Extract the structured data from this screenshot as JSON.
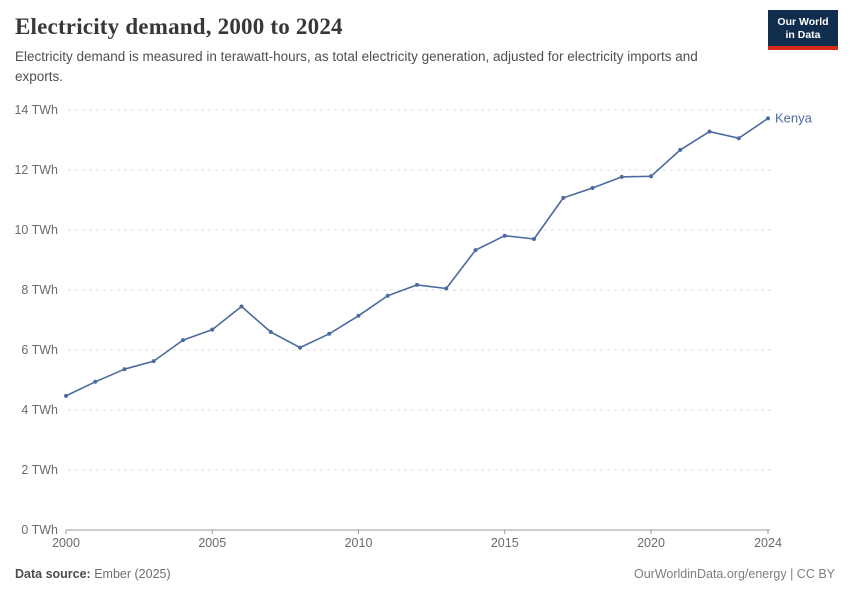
{
  "header": {
    "title": "Electricity demand, 2000 to 2024",
    "subtitle": "Electricity demand is measured in terawatt-hours, as total electricity generation, adjusted for electricity imports and exports.",
    "logo_line1": "Our World",
    "logo_line2": "in Data",
    "logo_bg_color": "#102d4e",
    "logo_stripe_color": "#d52b1e"
  },
  "chart_data": {
    "type": "line",
    "title": "Electricity demand, 2000 to 2024",
    "xlabel": "",
    "ylabel": "TWh",
    "xlim": [
      2000,
      2024
    ],
    "ylim": [
      0,
      14
    ],
    "grid": "horizontal-dashed",
    "legend_position": "end-of-line",
    "x": [
      2000,
      2001,
      2002,
      2003,
      2004,
      2005,
      2006,
      2007,
      2008,
      2009,
      2010,
      2011,
      2012,
      2013,
      2014,
      2015,
      2016,
      2017,
      2018,
      2019,
      2020,
      2021,
      2022,
      2023,
      2024
    ],
    "series": [
      {
        "name": "Kenya",
        "color": "#4c6a9e",
        "values": [
          4.47,
          4.94,
          5.36,
          5.63,
          6.33,
          6.68,
          7.45,
          6.6,
          6.08,
          6.54,
          7.14,
          7.81,
          8.17,
          8.05,
          9.33,
          9.81,
          9.7,
          11.07,
          11.4,
          11.77,
          11.79,
          12.67,
          13.28,
          13.06,
          13.72
        ]
      }
    ],
    "yticks": [
      {
        "value": 0,
        "label": "0 TWh"
      },
      {
        "value": 2,
        "label": "2 TWh"
      },
      {
        "value": 4,
        "label": "4 TWh"
      },
      {
        "value": 6,
        "label": "6 TWh"
      },
      {
        "value": 8,
        "label": "8 TWh"
      },
      {
        "value": 10,
        "label": "10 TWh"
      },
      {
        "value": 12,
        "label": "12 TWh"
      },
      {
        "value": 14,
        "label": "14 TWh"
      }
    ],
    "xticks": [
      {
        "value": 2000,
        "label": "2000"
      },
      {
        "value": 2005,
        "label": "2005"
      },
      {
        "value": 2010,
        "label": "2010"
      },
      {
        "value": 2015,
        "label": "2015"
      },
      {
        "value": 2020,
        "label": "2020"
      },
      {
        "value": 2024,
        "label": "2024"
      }
    ],
    "colors": {
      "gridline": "#dcdcdc",
      "axis_line": "#999999",
      "tick_label": "#6b6b6b"
    }
  },
  "footer": {
    "source_label": "Data source:",
    "source_value": " Ember (2025)",
    "right_text": "OurWorldinData.org/energy | CC BY"
  }
}
